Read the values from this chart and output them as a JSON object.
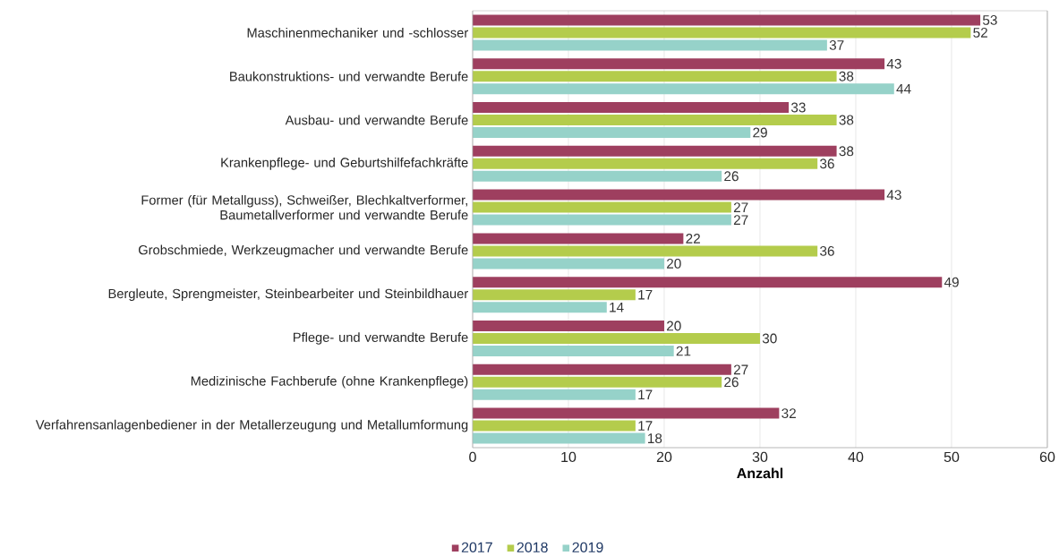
{
  "chart_data": {
    "type": "bar",
    "orientation": "horizontal",
    "xlabel": "Anzahl",
    "categories": [
      "Maschinenmechaniker und -schlosser",
      "Baukonstruktions- und verwandte Berufe",
      "Ausbau- und verwandte Berufe",
      "Krankenpflege- und Geburtshilfefachkräfte",
      "Former (für Metallguss), Schweißer, Blechkaltverformer, Baumetallverformer und verwandte Berufe",
      "Grobschmiede, Werkzeugmacher und verwandte Berufe",
      "Bergleute, Sprengmeister, Steinbearbeiter und Steinbildhauer",
      "Pflege- und verwandte Berufe",
      "Medizinische Fachberufe (ohne Krankenpflege)",
      "Verfahrensanlagenbediener in der Metallerzeugung und Metallumformung"
    ],
    "series": [
      {
        "name": "2017",
        "color": "#9e3f5f",
        "values": [
          53,
          43,
          33,
          38,
          43,
          22,
          49,
          20,
          27,
          32
        ]
      },
      {
        "name": "2018",
        "color": "#b4cc4c",
        "values": [
          52,
          38,
          38,
          36,
          27,
          36,
          17,
          30,
          26,
          17
        ]
      },
      {
        "name": "2019",
        "color": "#96d2c9",
        "values": [
          37,
          44,
          29,
          26,
          27,
          20,
          14,
          21,
          17,
          18
        ]
      }
    ],
    "xlim": [
      0,
      60
    ],
    "xticks": [
      0,
      10,
      20,
      30,
      40,
      50,
      60
    ],
    "grid": "x",
    "legend": "bottom",
    "data_labels": true
  }
}
